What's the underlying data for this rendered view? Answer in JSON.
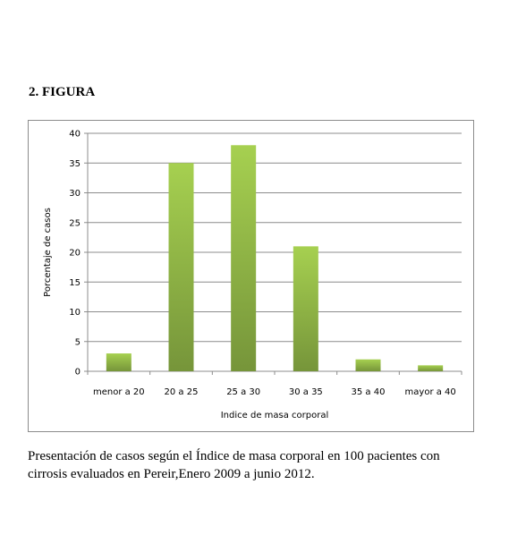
{
  "heading": "2. FIGURA",
  "caption": {
    "line1": "Presentación de casos según el Índice de masa corporal en 100 pacientes con",
    "line2": "cirrosis evaluados en Pereir,Enero 2009 a junio 2012."
  },
  "chart_data": {
    "type": "bar",
    "categories": [
      "menor a 20",
      "20 a 25",
      "25 a 30",
      "30 a 35",
      "35 a 40",
      "mayor a 40"
    ],
    "values": [
      3,
      35,
      38,
      21,
      2,
      1
    ],
    "xlabel": "Indice de masa corporal",
    "ylabel": "Porcentaje de casos",
    "ylim": [
      0,
      40
    ],
    "yticks": [
      0,
      5,
      10,
      15,
      20,
      25,
      30,
      35,
      40
    ],
    "grid": true,
    "legend": "none",
    "colors": {
      "bar_top": "#a6d050",
      "bar_bottom": "#76953a",
      "grid": "#8c8c8c"
    }
  }
}
